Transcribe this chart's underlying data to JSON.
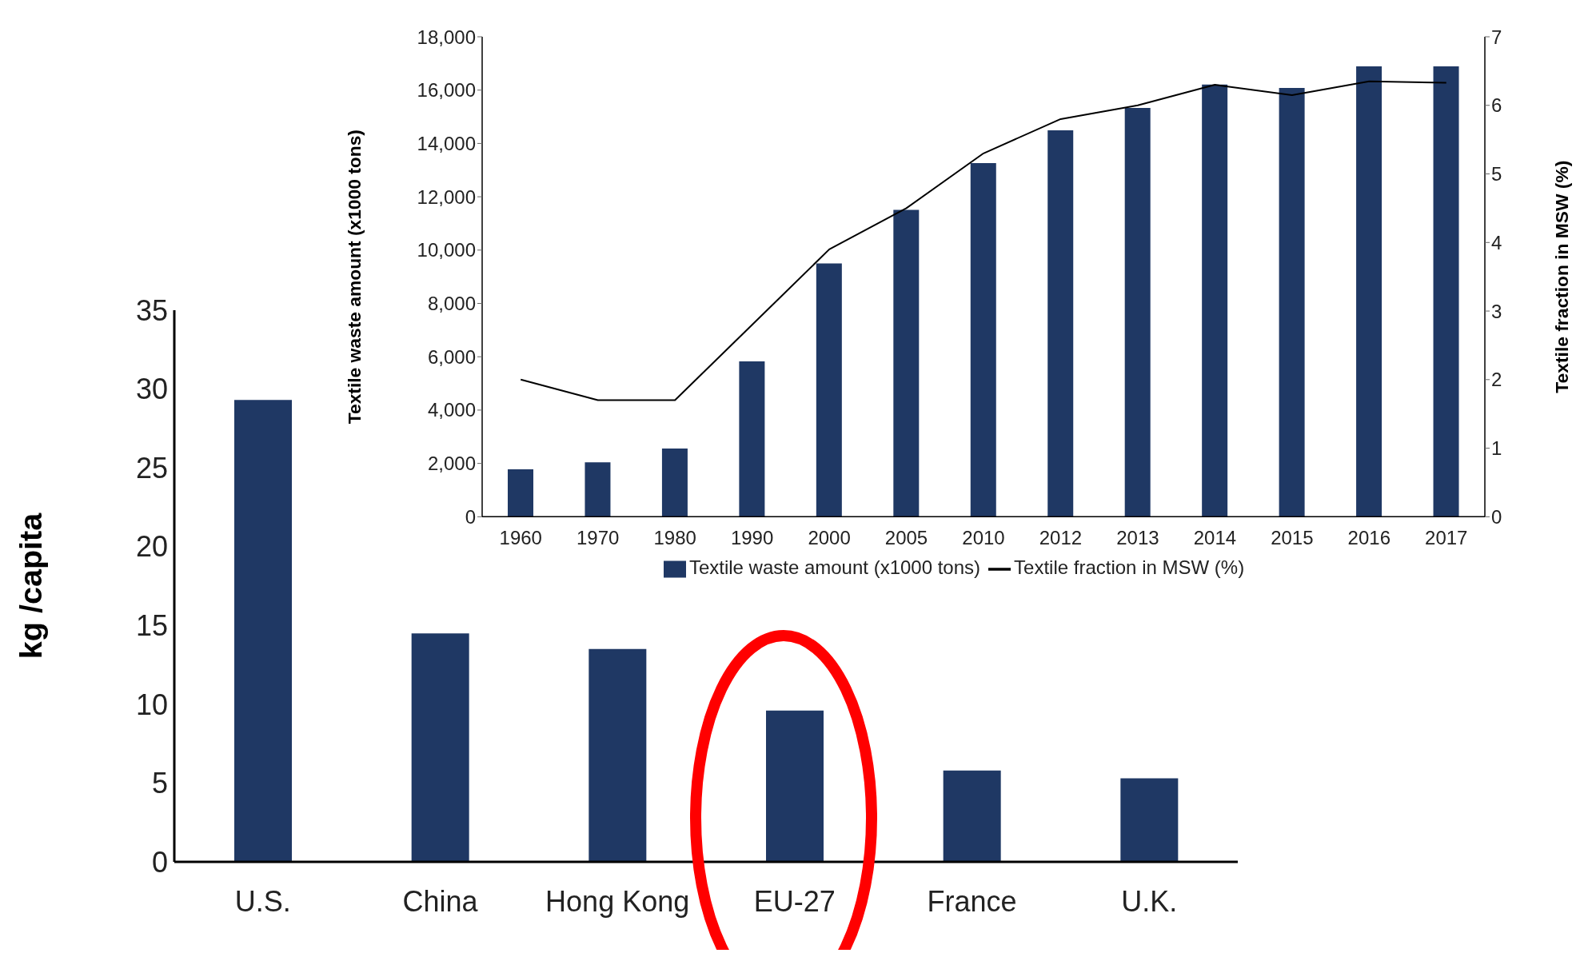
{
  "chart_data": [
    {
      "type": "bar",
      "ylabel": "kg /capita",
      "categories": [
        "U.S.",
        "China",
        "Hong Kong",
        "EU-27",
        "France",
        "U.K."
      ],
      "series": [
        {
          "color": "#1f3864",
          "values": [
            29.3,
            14.5,
            13.5,
            9.6,
            5.8,
            5.3
          ]
        }
      ],
      "ylim": [
        0,
        35
      ],
      "yticks": [
        0,
        5,
        10,
        15,
        20,
        25,
        30,
        35
      ],
      "legend": false
    },
    {
      "type": "bar",
      "ylabel": "Textile waste amount (x1000 tons)",
      "y2label": "Textile fraction in MSW (%)",
      "categories": [
        "1960",
        "1970",
        "1980",
        "1990",
        "2000",
        "2005",
        "2010",
        "2012",
        "2013",
        "2014",
        "2015",
        "2016",
        "2017"
      ],
      "series": [
        {
          "name": "Textile waste amount (x1000 tons)",
          "color": "#1f3864",
          "values": [
            1780,
            2040,
            2560,
            5830,
            9500,
            11510,
            13260,
            14490,
            15330,
            16210,
            16080,
            16890,
            16890
          ]
        },
        {
          "name": "Textile fraction in MSW (%)",
          "type": "line",
          "axis": "y2",
          "color": "#000000",
          "values": [
            2.0,
            1.7,
            1.7,
            2.8,
            3.9,
            4.5,
            5.3,
            5.8,
            6.0,
            6.3,
            6.15,
            6.35,
            6.33
          ]
        }
      ],
      "ylim": [
        0,
        18000
      ],
      "yticks": [
        0,
        {
          "value": 2000,
          "label": "2,000"
        },
        {
          "value": 4000,
          "label": "4,000"
        },
        {
          "value": 6000,
          "label": "6,000"
        },
        {
          "value": 8000,
          "label": "8,000"
        },
        {
          "value": 10000,
          "label": "10,000"
        },
        {
          "value": 12000,
          "label": "12,000"
        },
        {
          "value": 14000,
          "label": "14,000"
        },
        {
          "value": 16000,
          "label": "16,000"
        },
        {
          "value": 18000,
          "label": "18,000"
        }
      ],
      "y2lim": [
        0,
        7
      ],
      "y2ticks": [
        0,
        1,
        2,
        3,
        4,
        5,
        6,
        7
      ],
      "legend": "bottom",
      "marker": "none"
    }
  ]
}
